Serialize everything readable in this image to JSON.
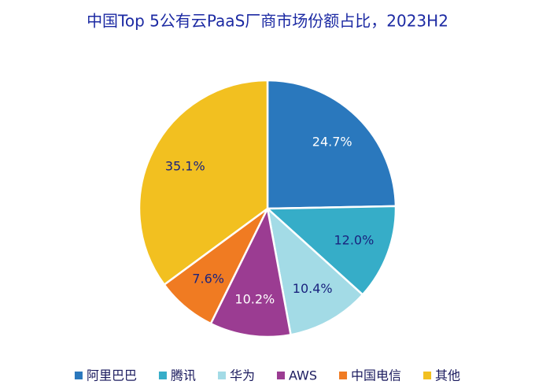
{
  "chart_data": {
    "type": "pie",
    "title": "中国Top 5公有云PaaS厂商市场份额占比，2023H2",
    "categories": [
      "阿里巴巴",
      "腾讯",
      "华为",
      "AWS",
      "中国电信",
      "其他"
    ],
    "values": [
      24.7,
      12.0,
      10.4,
      10.2,
      7.6,
      35.1
    ],
    "value_labels": [
      "24.7%",
      "12.0%",
      "10.4%",
      "10.2%",
      "7.6%",
      "35.1%"
    ],
    "colors": [
      "#2a78bd",
      "#36adc8",
      "#a3dbe6",
      "#9b3c92",
      "#f07b22",
      "#f2c020"
    ],
    "legend": "bottom"
  }
}
